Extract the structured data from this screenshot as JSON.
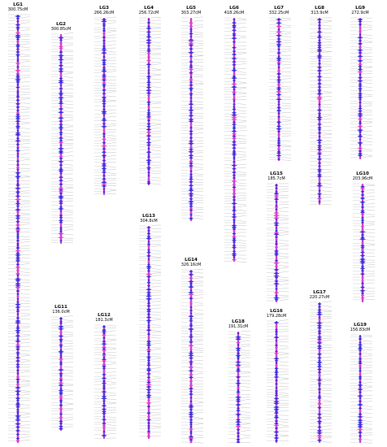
{
  "groups": [
    {
      "name": "LG1",
      "length": "300.75cM"
    },
    {
      "name": "LG2",
      "length": "300.85cM"
    },
    {
      "name": "LG3",
      "length": "266.26cM"
    },
    {
      "name": "LG4",
      "length": "256.72cM"
    },
    {
      "name": "LG5",
      "length": "303.27cM"
    },
    {
      "name": "LG6",
      "length": "418.26cM"
    },
    {
      "name": "LG7",
      "length": "332.25cM"
    },
    {
      "name": "LG8",
      "length": "313.9cM"
    },
    {
      "name": "LG9",
      "length": "272.9cM"
    },
    {
      "name": "LG10",
      "length": "203.96cM"
    },
    {
      "name": "LG11",
      "length": "136.0cM"
    },
    {
      "name": "LG12",
      "length": "181.3cM"
    },
    {
      "name": "LG13",
      "length": "304.8cM"
    },
    {
      "name": "LG14",
      "length": "326.16cM"
    },
    {
      "name": "LG15",
      "length": "185.7cM"
    },
    {
      "name": "LG16",
      "length": "179.28cM"
    },
    {
      "name": "LG17",
      "length": "220.27cM"
    },
    {
      "name": "LG18",
      "length": "191.31cM"
    },
    {
      "name": "LG19",
      "length": "156.83cM"
    }
  ]
}
